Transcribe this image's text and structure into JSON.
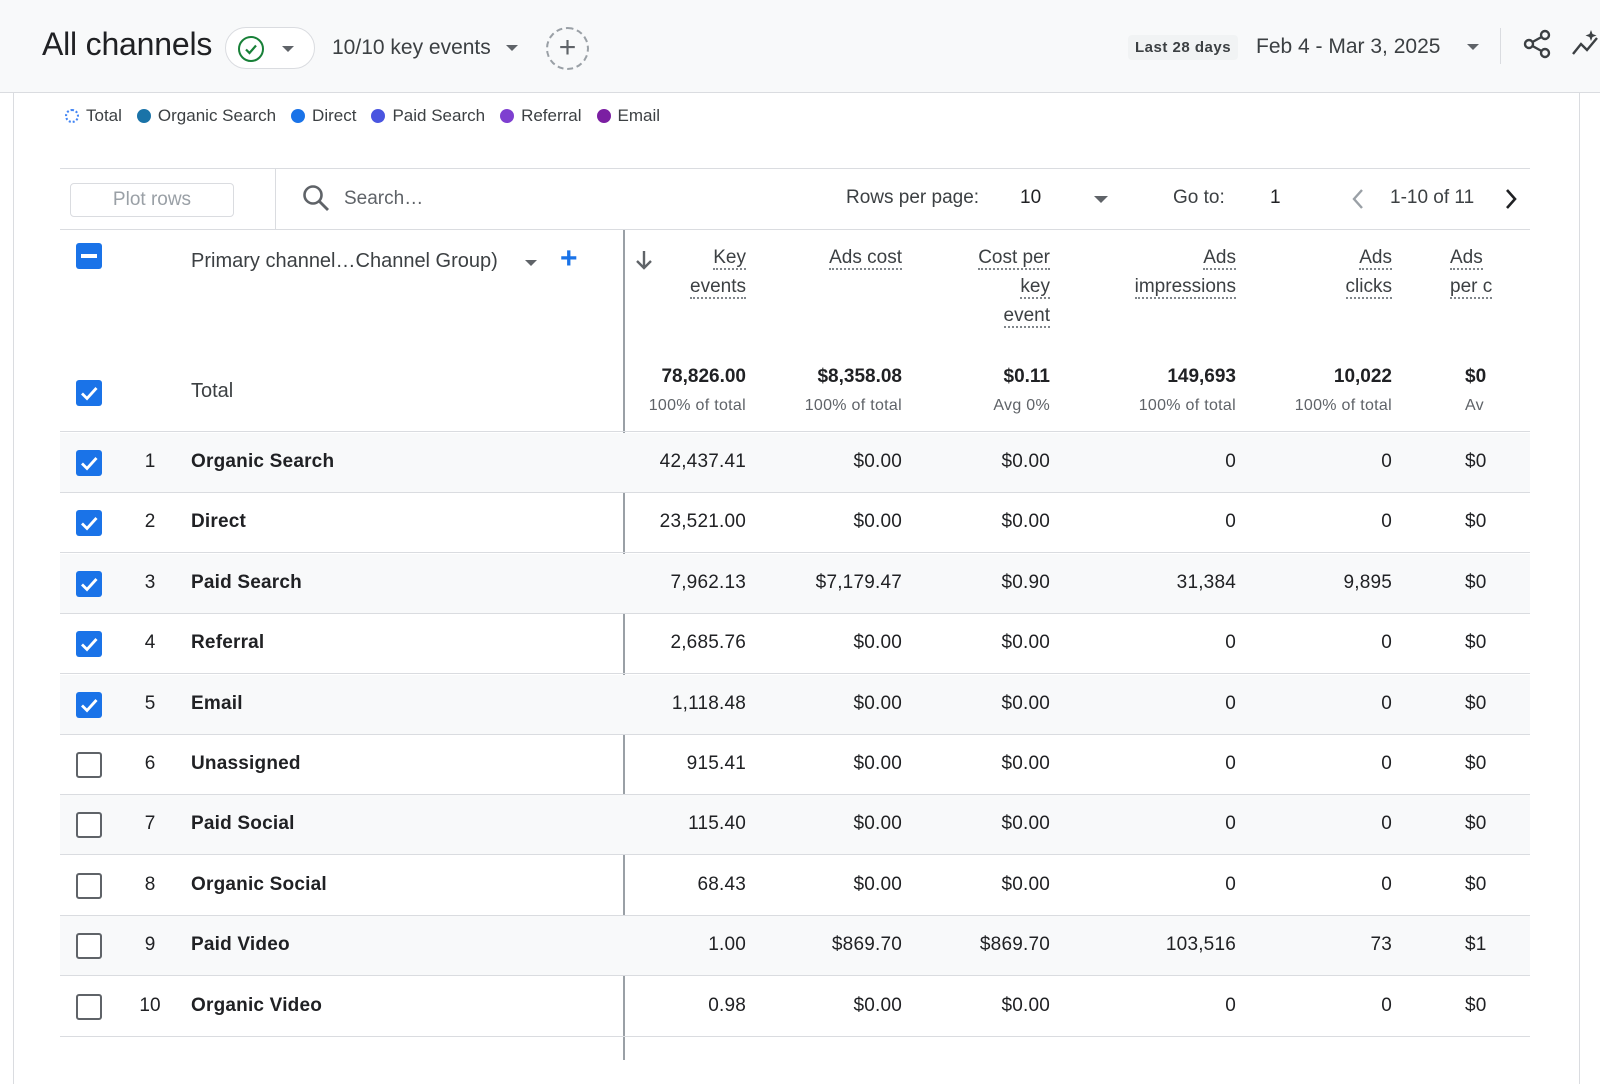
{
  "header": {
    "title": "All channels",
    "key_events": "10/10 key events",
    "date_chip": "Last 28 days",
    "date_range": "Feb 4 - Mar 3, 2025",
    "colors": {
      "check": "#188038",
      "accent": "#1a73e8"
    }
  },
  "legend": [
    {
      "label": "Total",
      "color": "#4285f4",
      "style": "dashed"
    },
    {
      "label": "Organic Search",
      "color": "#1a73a8"
    },
    {
      "label": "Direct",
      "color": "#1a73e8"
    },
    {
      "label": "Paid Search",
      "color": "#4a55e0"
    },
    {
      "label": "Referral",
      "color": "#7e3fd0"
    },
    {
      "label": "Email",
      "color": "#7b1fa2"
    }
  ],
  "toolbar": {
    "plot_rows": "Plot rows",
    "search_placeholder": "Search…",
    "rows_per_page_label": "Rows per page:",
    "rows_per_page_value": "10",
    "goto_label": "Go to:",
    "goto_value": "1",
    "pagination": "1-10 of 11"
  },
  "table": {
    "dimension_header": "Primary channel…Channel Group)",
    "metric_headers": [
      [
        "Key",
        "events"
      ],
      [
        "Ads cost"
      ],
      [
        "Cost per",
        "key",
        "event"
      ],
      [
        "Ads",
        "impressions"
      ],
      [
        "Ads",
        "clicks"
      ],
      [
        "Ads",
        "per c"
      ]
    ],
    "total": {
      "label": "Total",
      "values": [
        "78,826.00",
        "$8,358.08",
        "$0.11",
        "149,693",
        "10,022",
        "$0"
      ],
      "subs": [
        "100% of total",
        "100% of total",
        "Avg 0%",
        "100% of total",
        "100% of total",
        "Av"
      ]
    },
    "rows": [
      {
        "num": "1",
        "name": "Organic Search",
        "checked": true,
        "values": [
          "42,437.41",
          "$0.00",
          "$0.00",
          "0",
          "0",
          "$0"
        ]
      },
      {
        "num": "2",
        "name": "Direct",
        "checked": true,
        "values": [
          "23,521.00",
          "$0.00",
          "$0.00",
          "0",
          "0",
          "$0"
        ]
      },
      {
        "num": "3",
        "name": "Paid Search",
        "checked": true,
        "values": [
          "7,962.13",
          "$7,179.47",
          "$0.90",
          "31,384",
          "9,895",
          "$0"
        ]
      },
      {
        "num": "4",
        "name": "Referral",
        "checked": true,
        "values": [
          "2,685.76",
          "$0.00",
          "$0.00",
          "0",
          "0",
          "$0"
        ]
      },
      {
        "num": "5",
        "name": "Email",
        "checked": true,
        "values": [
          "1,118.48",
          "$0.00",
          "$0.00",
          "0",
          "0",
          "$0"
        ]
      },
      {
        "num": "6",
        "name": "Unassigned",
        "checked": false,
        "values": [
          "915.41",
          "$0.00",
          "$0.00",
          "0",
          "0",
          "$0"
        ]
      },
      {
        "num": "7",
        "name": "Paid Social",
        "checked": false,
        "values": [
          "115.40",
          "$0.00",
          "$0.00",
          "0",
          "0",
          "$0"
        ]
      },
      {
        "num": "8",
        "name": "Organic Social",
        "checked": false,
        "values": [
          "68.43",
          "$0.00",
          "$0.00",
          "0",
          "0",
          "$0"
        ]
      },
      {
        "num": "9",
        "name": "Paid Video",
        "checked": false,
        "values": [
          "1.00",
          "$869.70",
          "$869.70",
          "103,516",
          "73",
          "$1"
        ]
      },
      {
        "num": "10",
        "name": "Organic Video",
        "checked": false,
        "values": [
          "0.98",
          "$0.00",
          "$0.00",
          "0",
          "0",
          "$0"
        ]
      }
    ]
  }
}
